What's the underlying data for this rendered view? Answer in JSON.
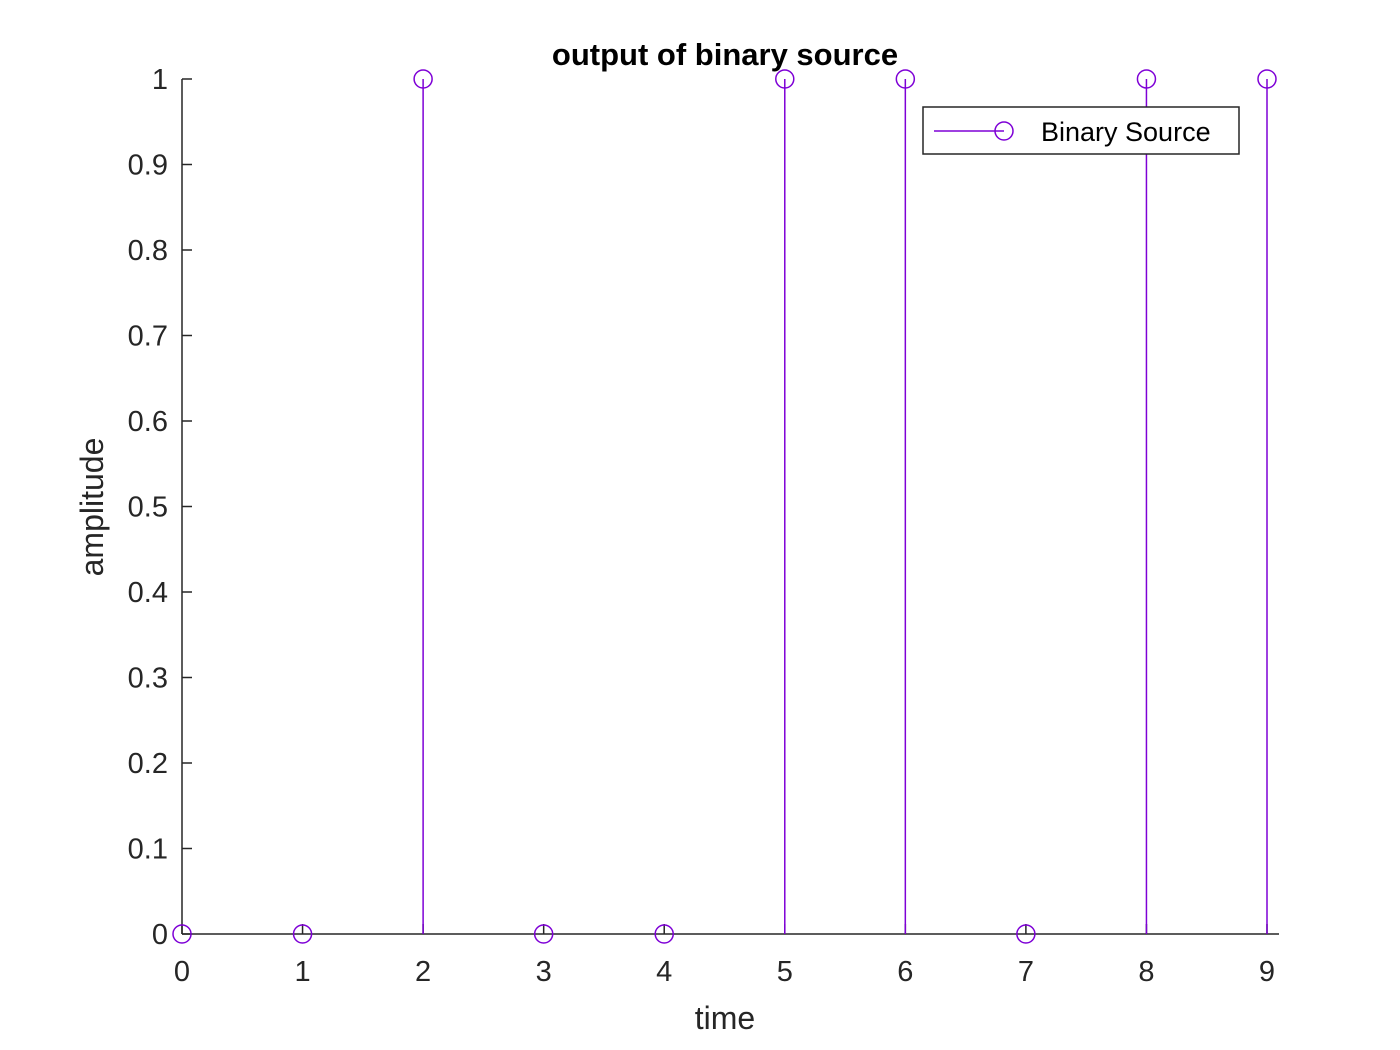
{
  "chart_data": {
    "type": "stem",
    "title": "output of binary source",
    "xlabel": "time",
    "ylabel": "amplitude",
    "x": [
      0,
      1,
      2,
      3,
      4,
      5,
      6,
      7,
      8,
      9
    ],
    "series": [
      {
        "name": "Binary Source",
        "values": [
          0,
          0,
          1,
          0,
          0,
          1,
          1,
          0,
          1,
          1
        ],
        "color": "#7E00D6",
        "marker": "circle"
      }
    ],
    "xlim": [
      0,
      9
    ],
    "ylim": [
      0,
      1
    ],
    "xticks": [
      "0",
      "1",
      "2",
      "3",
      "4",
      "5",
      "6",
      "7",
      "8",
      "9"
    ],
    "yticks": [
      "0",
      "0.1",
      "0.2",
      "0.3",
      "0.4",
      "0.5",
      "0.6",
      "0.7",
      "0.8",
      "0.9",
      "1"
    ],
    "grid": false,
    "legend": "top-right"
  }
}
